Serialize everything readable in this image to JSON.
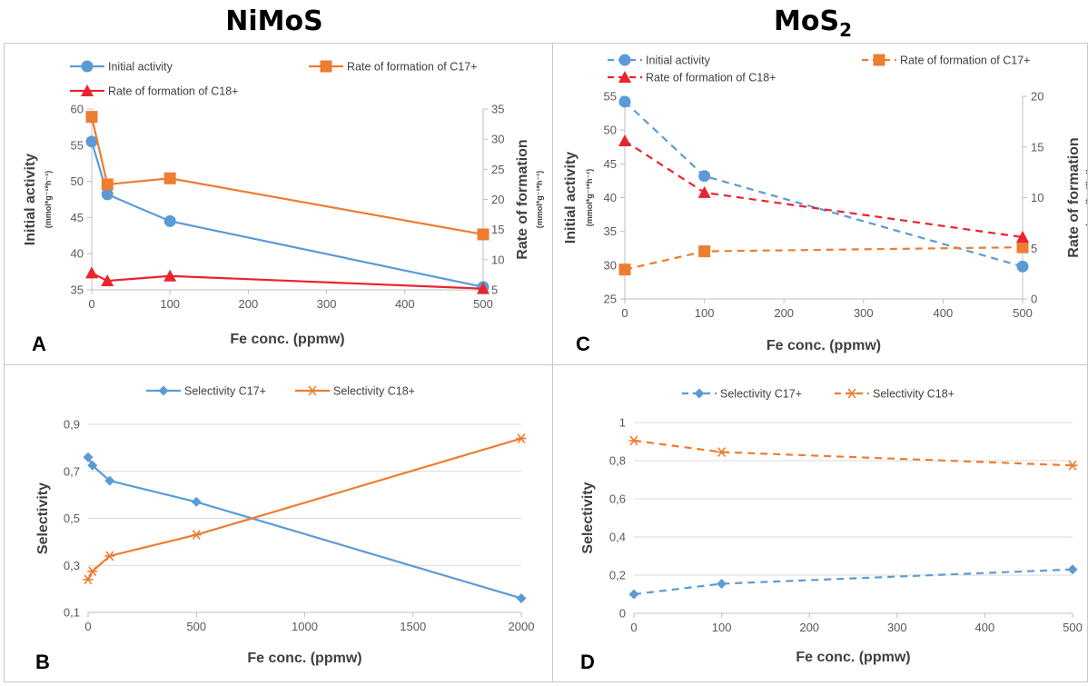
{
  "headings": {
    "left": "NiMoS",
    "right": "MoS",
    "right_sub": "2"
  },
  "colors": {
    "blue": "#5b9bd5",
    "orange": "#ed7d31",
    "red": "#e8242f",
    "grid": "#d9d9d9",
    "axis": "#bfbfbf"
  },
  "chart_data": [
    {
      "panel": "A",
      "type": "line",
      "xlabel": "Fe conc. (ppmw)",
      "ylabel": "Initial activity",
      "ylabel_unit": "(mmol*g⁻¹*h⁻¹)",
      "y2label": "Rate of formation",
      "y2label_unit": "(mmol*g⁻¹*h⁻¹)",
      "xlim": [
        0,
        500
      ],
      "xticks": [
        "0",
        "100",
        "200",
        "300",
        "400",
        "500"
      ],
      "ylim": [
        35,
        60
      ],
      "yticks": [
        "35",
        "40",
        "45",
        "50",
        "55",
        "60"
      ],
      "y2lim": [
        5,
        35
      ],
      "y2ticks": [
        "5",
        "10",
        "15",
        "20",
        "25",
        "30",
        "35"
      ],
      "grid": false,
      "series": [
        {
          "name": "Initial activity",
          "axis": "left",
          "color": "#5b9bd5",
          "dash": false,
          "marker": "circle",
          "x": [
            0,
            20,
            100,
            500
          ],
          "y": [
            55.5,
            48.2,
            44.5,
            35.4
          ]
        },
        {
          "name": "Rate of formation of C17+",
          "axis": "right",
          "color": "#ed7d31",
          "dash": false,
          "marker": "square",
          "x": [
            0,
            20,
            100,
            500
          ],
          "y": [
            33.7,
            22.5,
            23.5,
            14.2
          ]
        },
        {
          "name": "Rate of formation of C18+",
          "axis": "right",
          "color": "#e8242f",
          "dash": false,
          "marker": "triangle",
          "x": [
            0,
            20,
            100,
            500
          ],
          "y": [
            7.8,
            6.5,
            7.3,
            5.2
          ]
        }
      ]
    },
    {
      "panel": "C",
      "type": "line",
      "xlabel": "Fe conc. (ppmw)",
      "ylabel": "Initial activity",
      "ylabel_unit": "(mmol*g⁻¹*h⁻¹)",
      "y2label": "Rate of formation",
      "y2label_unit": "(mmol*g⁻¹*h⁻¹)",
      "xlim": [
        0,
        500
      ],
      "xticks": [
        "0",
        "100",
        "200",
        "300",
        "400",
        "500"
      ],
      "ylim": [
        25,
        55
      ],
      "yticks": [
        "25",
        "30",
        "35",
        "40",
        "45",
        "50",
        "55"
      ],
      "y2lim": [
        0,
        20
      ],
      "y2ticks": [
        "0",
        "5",
        "10",
        "15",
        "20"
      ],
      "grid": false,
      "series": [
        {
          "name": "Initial activity",
          "axis": "left",
          "color": "#5b9bd5",
          "dash": true,
          "marker": "circle",
          "x": [
            0,
            100,
            500
          ],
          "y": [
            54.2,
            43.2,
            29.8
          ]
        },
        {
          "name": "Rate of formation of C17+",
          "axis": "right",
          "color": "#ed7d31",
          "dash": true,
          "marker": "square",
          "x": [
            0,
            100,
            500
          ],
          "y": [
            2.9,
            4.7,
            5.1
          ]
        },
        {
          "name": "Rate of formation of C18+",
          "axis": "right",
          "color": "#e8242f",
          "dash": true,
          "marker": "triangle",
          "x": [
            0,
            100,
            500
          ],
          "y": [
            15.6,
            10.5,
            6.1
          ]
        }
      ]
    },
    {
      "panel": "B",
      "type": "line",
      "xlabel": "Fe conc. (ppmw)",
      "ylabel": "Selectivity",
      "xlim": [
        0,
        2000
      ],
      "xticks": [
        "0",
        "500",
        "1000",
        "1500",
        "2000"
      ],
      "ylim": [
        0.1,
        0.9
      ],
      "yticks": [
        "0,1",
        "0,3",
        "0,5",
        "0,7",
        "0,9"
      ],
      "grid": true,
      "series": [
        {
          "name": "Selectivity C17+",
          "color": "#5b9bd5",
          "dash": false,
          "marker": "diamond",
          "x": [
            0,
            20,
            100,
            500,
            2000
          ],
          "y": [
            0.76,
            0.725,
            0.66,
            0.57,
            0.16
          ]
        },
        {
          "name": "Selectivity C18+",
          "color": "#ed7d31",
          "dash": false,
          "marker": "star",
          "x": [
            0,
            20,
            100,
            500,
            2000
          ],
          "y": [
            0.24,
            0.275,
            0.34,
            0.43,
            0.84
          ]
        }
      ]
    },
    {
      "panel": "D",
      "type": "line",
      "xlabel": "Fe conc. (ppmw)",
      "ylabel": "Selectivity",
      "xlim": [
        0,
        500
      ],
      "xticks": [
        "0",
        "100",
        "200",
        "300",
        "400",
        "500"
      ],
      "ylim": [
        0,
        1
      ],
      "yticks": [
        "0",
        "0,2",
        "0,4",
        "0,6",
        "0,8",
        "1"
      ],
      "grid": true,
      "series": [
        {
          "name": "Selectivity C17+",
          "color": "#5b9bd5",
          "dash": true,
          "marker": "diamond",
          "x": [
            0,
            100,
            500
          ],
          "y": [
            0.1,
            0.155,
            0.23
          ]
        },
        {
          "name": "Selectivity C18+",
          "color": "#ed7d31",
          "dash": true,
          "marker": "star",
          "x": [
            0,
            100,
            500
          ],
          "y": [
            0.905,
            0.845,
            0.775
          ]
        }
      ]
    }
  ]
}
